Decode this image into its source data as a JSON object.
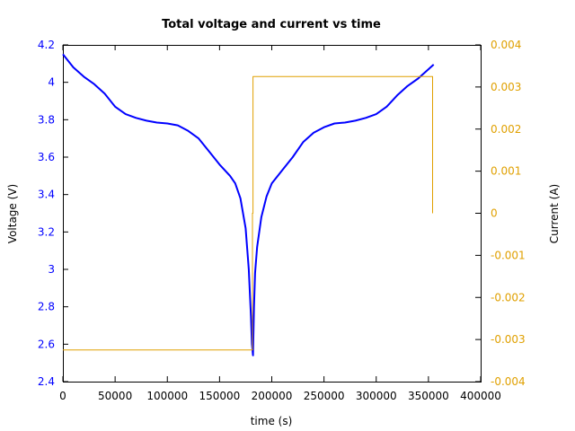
{
  "chart_data": {
    "type": "line",
    "title": "Total voltage and current vs time",
    "xlabel": "time (s)",
    "ylabel_left": "Voltage (V)",
    "ylabel_right": "Current (A)",
    "xlim": [
      0,
      400000
    ],
    "ylim_left": [
      2.4,
      4.2
    ],
    "ylim_right": [
      -0.004,
      0.004
    ],
    "x_ticks": [
      "0",
      "50000",
      "100000",
      "150000",
      "200000",
      "250000",
      "300000",
      "350000",
      "400000"
    ],
    "y_left_ticks": [
      "2.4",
      "2.6",
      "2.8",
      "3",
      "3.2",
      "3.4",
      "3.6",
      "3.8",
      "4",
      "4.2"
    ],
    "y_right_ticks": [
      "-0.004",
      "-0.003",
      "-0.002",
      "-0.001",
      "0",
      "0.001",
      "0.002",
      "0.003",
      "0.004"
    ],
    "grid": false,
    "series": [
      {
        "axis": "left",
        "color": "#0000ff",
        "x": [
          0,
          10000,
          20000,
          30000,
          40000,
          50000,
          60000,
          70000,
          80000,
          90000,
          100000,
          110000,
          120000,
          130000,
          140000,
          150000,
          160000,
          165000,
          170000,
          175000,
          178000,
          180000,
          181000,
          182000,
          183000,
          184000,
          186000,
          190000,
          195000,
          200000,
          210000,
          220000,
          230000,
          240000,
          250000,
          260000,
          270000,
          280000,
          290000,
          300000,
          310000,
          320000,
          330000,
          340000,
          350000,
          355000
        ],
        "y": [
          4.15,
          4.08,
          4.03,
          3.99,
          3.94,
          3.87,
          3.83,
          3.81,
          3.795,
          3.785,
          3.78,
          3.77,
          3.74,
          3.7,
          3.63,
          3.56,
          3.5,
          3.46,
          3.38,
          3.22,
          3.0,
          2.75,
          2.6,
          2.54,
          2.8,
          2.98,
          3.12,
          3.28,
          3.39,
          3.46,
          3.53,
          3.6,
          3.68,
          3.73,
          3.76,
          3.78,
          3.785,
          3.795,
          3.81,
          3.83,
          3.87,
          3.93,
          3.98,
          4.02,
          4.07,
          4.095
        ]
      },
      {
        "axis": "right",
        "color": "#e0a000",
        "x": [
          0,
          181500,
          181500,
          182000,
          182000,
          354000,
          354000
        ],
        "y": [
          -0.00325,
          -0.00325,
          0.0,
          0.0,
          0.00325,
          0.00325,
          0.0
        ]
      }
    ]
  }
}
